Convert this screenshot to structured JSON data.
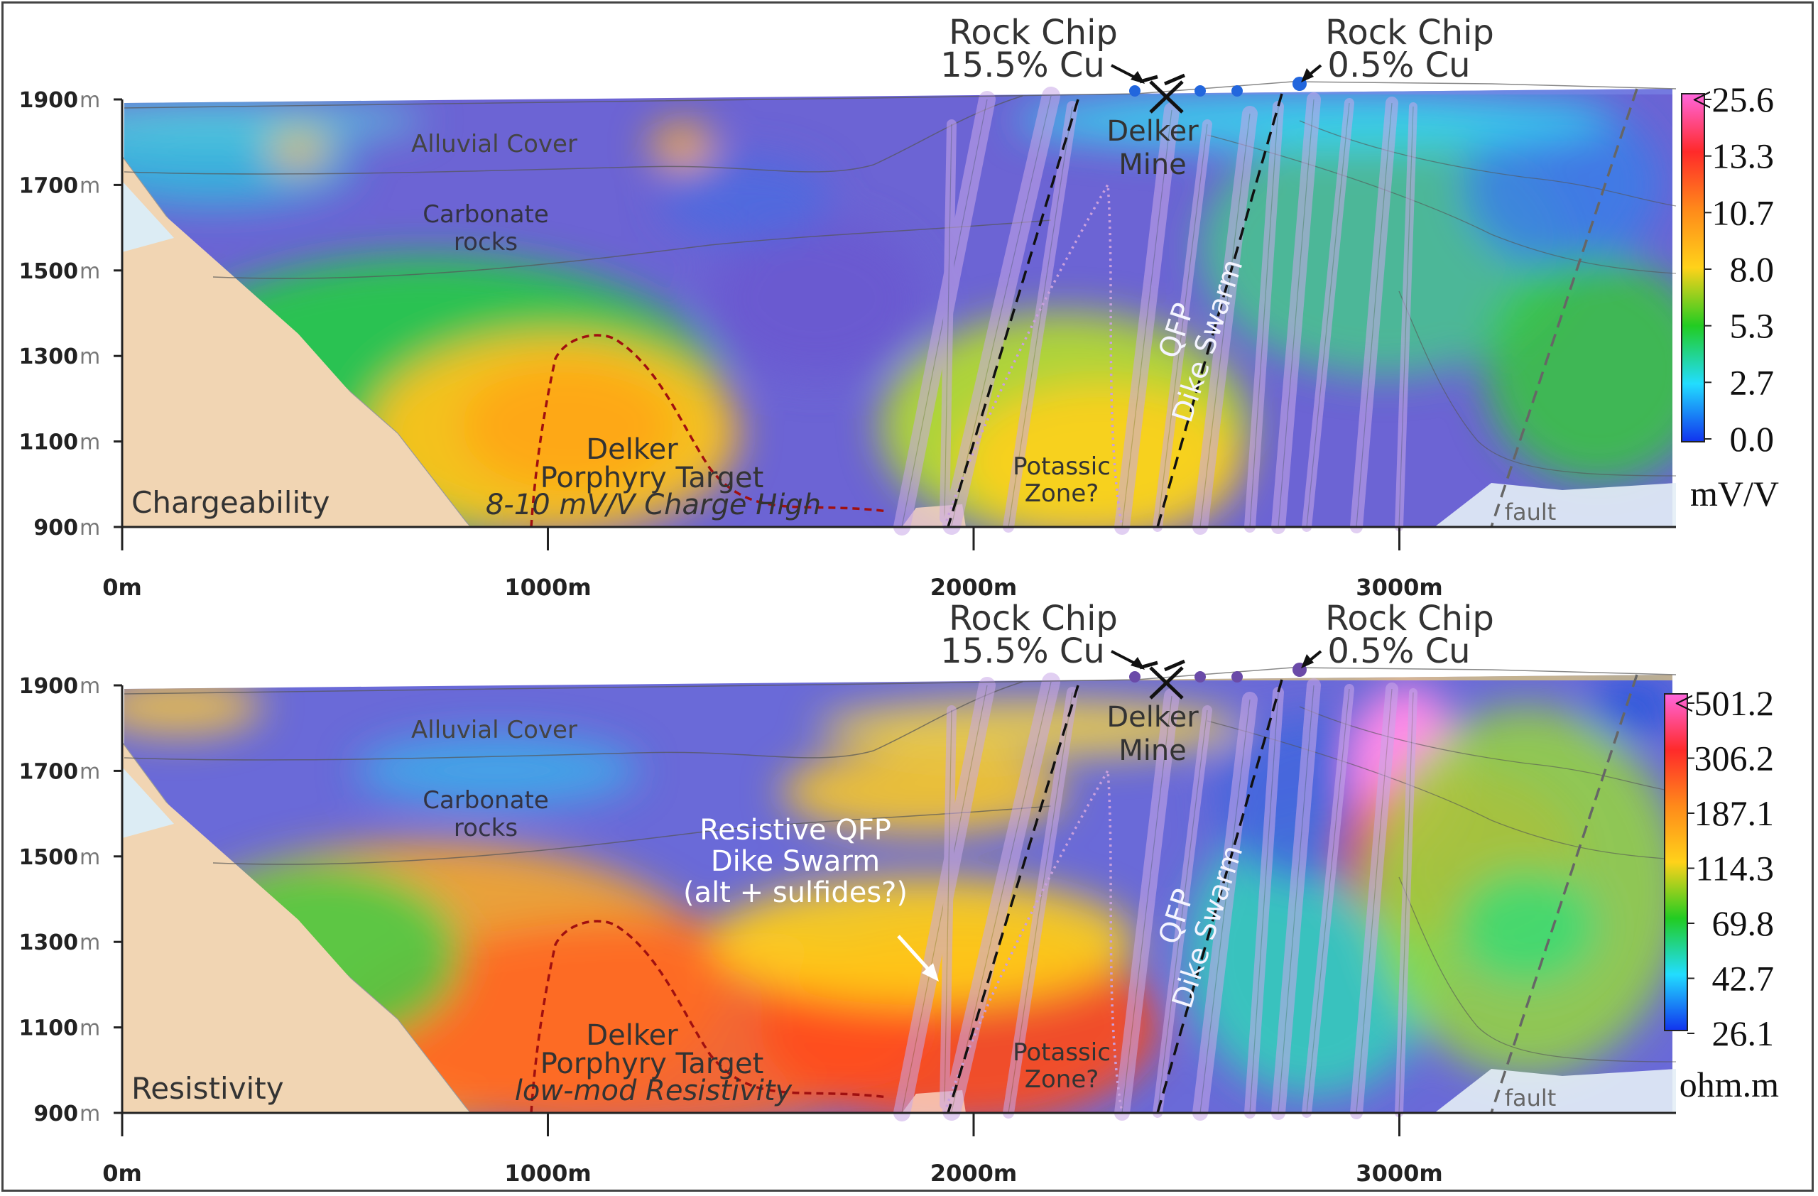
{
  "chart_data": [
    {
      "type": "heatmap",
      "panel_label": "Chargeability",
      "x_ticks": [
        "0m",
        "1000m",
        "2000m",
        "3000m"
      ],
      "x_tick_values": [
        0,
        1000,
        2000,
        3000
      ],
      "y_ticks": [
        "1900m",
        "1700m",
        "1500m",
        "1300m",
        "1100m",
        "900m"
      ],
      "y_tick_values": [
        1900,
        1700,
        1500,
        1300,
        1100,
        900
      ],
      "xlim": [
        0,
        3700
      ],
      "ylim": [
        900,
        1900
      ],
      "colorbar": {
        "unit": "mV/V",
        "labels": [
          "<25.6",
          "13.3",
          "10.7",
          "8.0",
          "5.3",
          "2.7",
          "0.0"
        ],
        "colors": [
          "#ff66dd",
          "#ff2a2a",
          "#ff8a1a",
          "#ffd21a",
          "#22cc22",
          "#22ddff",
          "#1133ee"
        ]
      },
      "annotations": {
        "rock_chip_left": [
          "Rock Chip",
          "15.5% Cu"
        ],
        "rock_chip_right": [
          "Rock Chip",
          "0.5% Cu"
        ],
        "mine": [
          "Delker",
          "Mine"
        ],
        "alluvial": "Alluvial Cover",
        "carbonate": [
          "Carbonate",
          "rocks"
        ],
        "qfp": [
          "QFP",
          "Dike Swarm"
        ],
        "target": [
          "Delker",
          "Porphyry Target",
          "8-10 mV/V Charge High"
        ],
        "potassic": [
          "Potassic",
          "Zone?"
        ],
        "fault": "fault"
      }
    },
    {
      "type": "heatmap",
      "panel_label": "Resistivity",
      "x_ticks": [
        "0m",
        "1000m",
        "2000m",
        "3000m"
      ],
      "x_tick_values": [
        0,
        1000,
        2000,
        3000
      ],
      "y_ticks": [
        "1900m",
        "1700m",
        "1500m",
        "1300m",
        "1100m",
        "900m"
      ],
      "y_tick_values": [
        1900,
        1700,
        1500,
        1300,
        1100,
        900
      ],
      "xlim": [
        0,
        3700
      ],
      "ylim": [
        900,
        1900
      ],
      "colorbar": {
        "unit": "ohm.m",
        "labels": [
          "<501.2",
          "306.2",
          "187.1",
          "114.3",
          "69.8",
          "42.7",
          "26.1"
        ],
        "colors": [
          "#ff66dd",
          "#ff2a2a",
          "#ff8a1a",
          "#ffd21a",
          "#22cc22",
          "#22ddff",
          "#1133ee"
        ]
      },
      "annotations": {
        "rock_chip_left": [
          "Rock Chip",
          "15.5% Cu"
        ],
        "rock_chip_right": [
          "Rock Chip",
          "0.5% Cu"
        ],
        "mine": [
          "Delker",
          "Mine"
        ],
        "alluvial": "Alluvial Cover",
        "carbonate": [
          "Carbonate",
          "rocks"
        ],
        "qfp": [
          "QFP",
          "Dike Swarm"
        ],
        "resistive": [
          "Resistive QFP",
          "Dike Swarm",
          "(alt + sulfides?)"
        ],
        "target": [
          "Delker",
          "Porphyry Target",
          "low-mod Resistivity"
        ],
        "potassic": [
          "Potassic",
          "Zone?"
        ],
        "fault": "fault"
      }
    }
  ]
}
